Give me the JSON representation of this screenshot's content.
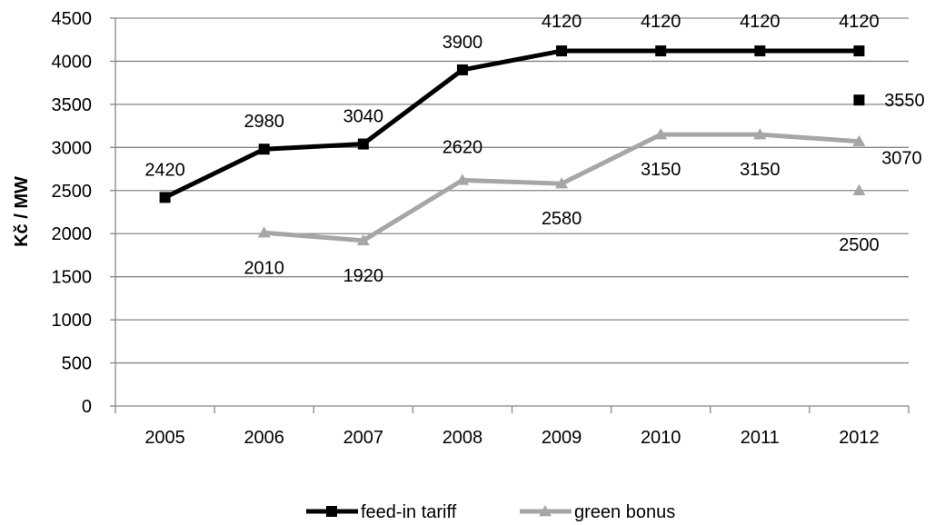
{
  "chart_data": {
    "type": "line",
    "title": "",
    "xlabel": "",
    "ylabel": "Kč / MW",
    "categories": [
      "2005",
      "2006",
      "2007",
      "2008",
      "2009",
      "2010",
      "2011",
      "2012"
    ],
    "ylim": [
      0,
      4500
    ],
    "yticks": [
      "0",
      "500",
      "1000",
      "1500",
      "2000",
      "2500",
      "3000",
      "3500",
      "4000",
      "4500"
    ],
    "grid": "horizontal",
    "legend_position": "bottom",
    "series": [
      {
        "name": "feed-in tariff",
        "color": "#000000",
        "marker": "square",
        "values": [
          2420,
          2980,
          3040,
          3900,
          4120,
          4120,
          4120,
          4120
        ],
        "labels": [
          "2420",
          "2980",
          "3040",
          "3900",
          "4120",
          "4120",
          "4120",
          "4120"
        ]
      },
      {
        "name": "green bonus",
        "color": "#a6a6a6",
        "marker": "triangle",
        "values": [
          null,
          2010,
          1920,
          2620,
          2580,
          3150,
          3150,
          3070
        ],
        "labels": [
          "",
          "2010",
          "1920",
          "2620",
          "2580",
          "3150",
          "3150",
          "3070"
        ]
      }
    ],
    "extra_points": [
      {
        "series": "feed-in tariff",
        "category": "2012",
        "value": 3550,
        "label": "3550"
      },
      {
        "series": "green bonus",
        "category": "2012",
        "value": 2500,
        "label": "2500"
      }
    ]
  }
}
